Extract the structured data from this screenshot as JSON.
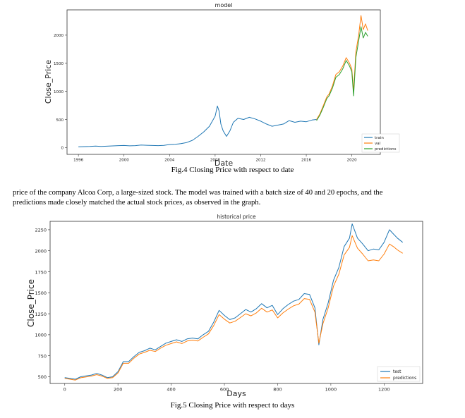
{
  "captions": {
    "fig4": "Fig.4    Closing Price with respect to date",
    "fig5": "Fig.5  Closing Price with respect to days"
  },
  "paragraph": {
    "line1": "price of the company Alcoa Corp, a large-sized stock. The model was trained with a batch size of 40 and 20 epochs, and the",
    "line2": "predictions made closely  matched the actual stock prices, as observed in the graph."
  },
  "chart_data": [
    {
      "type": "line",
      "title": "model",
      "xlabel": "Date",
      "ylabel": "Close_Price",
      "xlim": [
        1995,
        2022.5
      ],
      "ylim": [
        -120,
        2450
      ],
      "x_ticks": [
        1996,
        2000,
        2004,
        2008,
        2012,
        2016,
        2020
      ],
      "y_ticks": [
        0,
        500,
        1000,
        1500,
        2000
      ],
      "legend_position": "bottom-right",
      "grid": false,
      "series": [
        {
          "name": "train",
          "color": "#1f77b4",
          "points": [
            [
              1996,
              15
            ],
            [
              1996.5,
              18
            ],
            [
              1997,
              20
            ],
            [
              1997.5,
              28
            ],
            [
              1998,
              22
            ],
            [
              1998.5,
              25
            ],
            [
              1999,
              30
            ],
            [
              1999.5,
              35
            ],
            [
              2000,
              38
            ],
            [
              2000.5,
              32
            ],
            [
              2001,
              35
            ],
            [
              2001.5,
              45
            ],
            [
              2002,
              42
            ],
            [
              2002.5,
              38
            ],
            [
              2003,
              35
            ],
            [
              2003.5,
              40
            ],
            [
              2004,
              55
            ],
            [
              2004.5,
              60
            ],
            [
              2005,
              70
            ],
            [
              2005.5,
              90
            ],
            [
              2006,
              130
            ],
            [
              2006.5,
              200
            ],
            [
              2007,
              280
            ],
            [
              2007.5,
              380
            ],
            [
              2008,
              560
            ],
            [
              2008.2,
              740
            ],
            [
              2008.35,
              650
            ],
            [
              2008.5,
              420
            ],
            [
              2008.7,
              300
            ],
            [
              2009,
              200
            ],
            [
              2009.3,
              300
            ],
            [
              2009.6,
              450
            ],
            [
              2010,
              520
            ],
            [
              2010.5,
              500
            ],
            [
              2011,
              540
            ],
            [
              2011.5,
              510
            ],
            [
              2012,
              470
            ],
            [
              2012.5,
              420
            ],
            [
              2013,
              380
            ],
            [
              2013.5,
              400
            ],
            [
              2014,
              420
            ],
            [
              2014.5,
              480
            ],
            [
              2015,
              450
            ],
            [
              2015.5,
              470
            ],
            [
              2016,
              460
            ],
            [
              2016.5,
              490
            ],
            [
              2016.9,
              500
            ]
          ]
        },
        {
          "name": "val",
          "color": "#ff7f0e",
          "points": [
            [
              2016.9,
              500
            ],
            [
              2017.2,
              600
            ],
            [
              2017.5,
              750
            ],
            [
              2017.8,
              900
            ],
            [
              2018,
              950
            ],
            [
              2018.3,
              1100
            ],
            [
              2018.6,
              1300
            ],
            [
              2018.9,
              1350
            ],
            [
              2019.2,
              1450
            ],
            [
              2019.5,
              1600
            ],
            [
              2019.8,
              1500
            ],
            [
              2020,
              1400
            ],
            [
              2020.15,
              1000
            ],
            [
              2020.35,
              1700
            ],
            [
              2020.6,
              2000
            ],
            [
              2020.8,
              2350
            ],
            [
              2021,
              2100
            ],
            [
              2021.2,
              2200
            ],
            [
              2021.4,
              2080
            ]
          ]
        },
        {
          "name": "predictions",
          "color": "#2ca02c",
          "points": [
            [
              2016.9,
              480
            ],
            [
              2017.2,
              580
            ],
            [
              2017.5,
              720
            ],
            [
              2017.8,
              870
            ],
            [
              2018,
              920
            ],
            [
              2018.3,
              1060
            ],
            [
              2018.6,
              1250
            ],
            [
              2018.9,
              1300
            ],
            [
              2019.2,
              1400
            ],
            [
              2019.5,
              1550
            ],
            [
              2019.8,
              1450
            ],
            [
              2020,
              1350
            ],
            [
              2020.15,
              920
            ],
            [
              2020.35,
              1600
            ],
            [
              2020.6,
              1900
            ],
            [
              2020.8,
              2150
            ],
            [
              2021,
              1950
            ],
            [
              2021.2,
              2050
            ],
            [
              2021.4,
              1980
            ]
          ]
        }
      ]
    },
    {
      "type": "line",
      "title": "historical price",
      "xlabel": "Days",
      "ylabel": "Close_Price",
      "xlim": [
        -55,
        1345
      ],
      "ylim": [
        420,
        2350
      ],
      "x_ticks": [
        0,
        200,
        400,
        600,
        800,
        1000,
        1200
      ],
      "y_ticks": [
        500,
        750,
        1000,
        1250,
        1500,
        1750,
        2000,
        2250
      ],
      "legend_position": "bottom-right",
      "grid": false,
      "series": [
        {
          "name": "test",
          "color": "#1f77b4",
          "points": [
            [
              0,
              490
            ],
            [
              20,
              480
            ],
            [
              40,
              470
            ],
            [
              60,
              500
            ],
            [
              80,
              510
            ],
            [
              100,
              520
            ],
            [
              120,
              540
            ],
            [
              140,
              520
            ],
            [
              160,
              490
            ],
            [
              180,
              500
            ],
            [
              200,
              560
            ],
            [
              220,
              680
            ],
            [
              240,
              680
            ],
            [
              260,
              740
            ],
            [
              280,
              790
            ],
            [
              300,
              810
            ],
            [
              320,
              840
            ],
            [
              340,
              820
            ],
            [
              360,
              860
            ],
            [
              380,
              900
            ],
            [
              400,
              920
            ],
            [
              420,
              940
            ],
            [
              440,
              920
            ],
            [
              460,
              950
            ],
            [
              480,
              960
            ],
            [
              500,
              950
            ],
            [
              520,
              1000
            ],
            [
              540,
              1040
            ],
            [
              560,
              1150
            ],
            [
              580,
              1290
            ],
            [
              600,
              1230
            ],
            [
              620,
              1180
            ],
            [
              640,
              1200
            ],
            [
              660,
              1250
            ],
            [
              680,
              1300
            ],
            [
              700,
              1270
            ],
            [
              720,
              1310
            ],
            [
              740,
              1370
            ],
            [
              760,
              1320
            ],
            [
              780,
              1350
            ],
            [
              800,
              1240
            ],
            [
              820,
              1310
            ],
            [
              840,
              1360
            ],
            [
              860,
              1400
            ],
            [
              880,
              1420
            ],
            [
              900,
              1490
            ],
            [
              920,
              1480
            ],
            [
              940,
              1320
            ],
            [
              955,
              880
            ],
            [
              970,
              1180
            ],
            [
              990,
              1380
            ],
            [
              1010,
              1650
            ],
            [
              1030,
              1800
            ],
            [
              1050,
              2050
            ],
            [
              1070,
              2150
            ],
            [
              1080,
              2320
            ],
            [
              1100,
              2150
            ],
            [
              1120,
              2080
            ],
            [
              1140,
              2000
            ],
            [
              1160,
              2020
            ],
            [
              1180,
              2010
            ],
            [
              1200,
              2100
            ],
            [
              1220,
              2250
            ],
            [
              1235,
              2200
            ],
            [
              1250,
              2150
            ],
            [
              1270,
              2100
            ]
          ]
        },
        {
          "name": "predictions",
          "color": "#ff7f0e",
          "points": [
            [
              0,
              480
            ],
            [
              20,
              470
            ],
            [
              40,
              460
            ],
            [
              60,
              488
            ],
            [
              80,
              498
            ],
            [
              100,
              508
            ],
            [
              120,
              525
            ],
            [
              140,
              508
            ],
            [
              160,
              480
            ],
            [
              180,
              490
            ],
            [
              200,
              545
            ],
            [
              220,
              660
            ],
            [
              240,
              660
            ],
            [
              260,
              720
            ],
            [
              280,
              770
            ],
            [
              300,
              790
            ],
            [
              320,
              815
            ],
            [
              340,
              800
            ],
            [
              360,
              840
            ],
            [
              380,
              875
            ],
            [
              400,
              895
            ],
            [
              420,
              915
            ],
            [
              440,
              895
            ],
            [
              460,
              925
            ],
            [
              480,
              935
            ],
            [
              500,
              925
            ],
            [
              520,
              970
            ],
            [
              540,
              1010
            ],
            [
              560,
              1110
            ],
            [
              580,
              1240
            ],
            [
              600,
              1185
            ],
            [
              620,
              1140
            ],
            [
              640,
              1160
            ],
            [
              660,
              1205
            ],
            [
              680,
              1250
            ],
            [
              700,
              1225
            ],
            [
              720,
              1260
            ],
            [
              740,
              1315
            ],
            [
              760,
              1270
            ],
            [
              780,
              1295
            ],
            [
              800,
              1200
            ],
            [
              820,
              1260
            ],
            [
              840,
              1305
            ],
            [
              860,
              1345
            ],
            [
              880,
              1365
            ],
            [
              900,
              1430
            ],
            [
              920,
              1420
            ],
            [
              940,
              1270
            ],
            [
              955,
              900
            ],
            [
              970,
              1130
            ],
            [
              990,
              1320
            ],
            [
              1010,
              1580
            ],
            [
              1030,
              1720
            ],
            [
              1050,
              1950
            ],
            [
              1070,
              2040
            ],
            [
              1080,
              2180
            ],
            [
              1100,
              2030
            ],
            [
              1120,
              1960
            ],
            [
              1140,
              1880
            ],
            [
              1160,
              1890
            ],
            [
              1180,
              1880
            ],
            [
              1200,
              1960
            ],
            [
              1220,
              2080
            ],
            [
              1235,
              2050
            ],
            [
              1250,
              2010
            ],
            [
              1270,
              1970
            ]
          ]
        }
      ]
    }
  ]
}
